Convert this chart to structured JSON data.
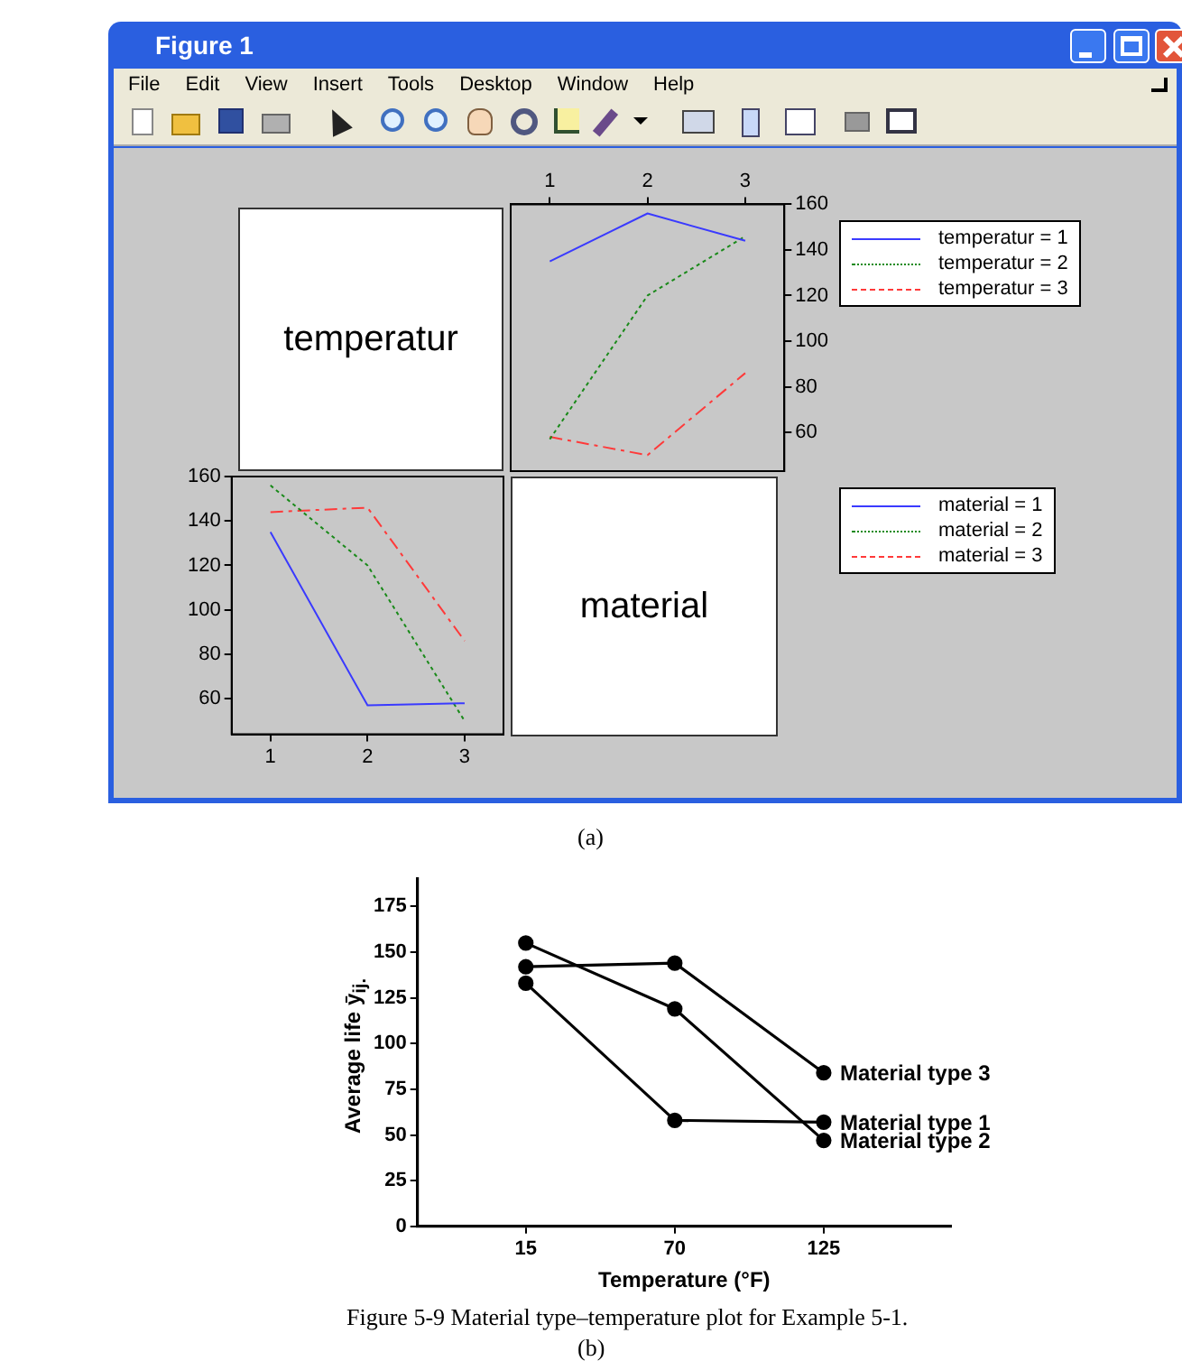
{
  "chart_data": [
    {
      "type": "other",
      "title": "Figure 1",
      "annotations": [
        "File",
        "Edit",
        "View",
        "Insert",
        "Tools",
        "Desktop",
        "Window",
        "Help"
      ]
    },
    {
      "type": "other",
      "title": "temperatur"
    },
    {
      "type": "line",
      "x": [
        1,
        2,
        3
      ],
      "xlim": [
        0.6,
        3.4
      ],
      "xticks": [
        1,
        2,
        3
      ],
      "ylim": [
        43,
        160
      ],
      "yticks": [
        60,
        80,
        100,
        120,
        140,
        160
      ],
      "grid": false,
      "legend": "right",
      "series": [
        {
          "name": "temperatur = 1",
          "color": "#3a3aff",
          "line_style": "solid",
          "values": [
            135,
            156,
            144
          ]
        },
        {
          "name": "temperatur = 2",
          "color": "#1a8a1a",
          "line_style": "dotted",
          "values": [
            57,
            120,
            146
          ]
        },
        {
          "name": "temperatur = 3",
          "color": "#ff3a3a",
          "line_style": "dashed",
          "values": [
            58,
            50,
            86
          ]
        }
      ]
    },
    {
      "type": "line",
      "x": [
        1,
        2,
        3
      ],
      "xlim": [
        0.6,
        3.4
      ],
      "xticks": [
        1,
        2,
        3
      ],
      "ylim": [
        44,
        160
      ],
      "yticks": [
        60,
        80,
        100,
        120,
        140,
        160
      ],
      "grid": false,
      "legend": "right",
      "series": [
        {
          "name": "material = 1",
          "color": "#3a3aff",
          "line_style": "solid",
          "values": [
            135,
            57,
            58
          ]
        },
        {
          "name": "material = 2",
          "color": "#1a8a1a",
          "line_style": "dotted",
          "values": [
            156,
            120,
            50
          ]
        },
        {
          "name": "material = 3",
          "color": "#ff3a3a",
          "line_style": "dashed",
          "values": [
            144,
            146,
            86
          ]
        }
      ]
    },
    {
      "type": "other",
      "title": "material",
      "annotations": [
        "(a)"
      ]
    },
    {
      "type": "line",
      "x": [
        15,
        70,
        125
      ],
      "xlim": [
        -25,
        172
      ],
      "xticks": [
        15,
        70,
        125
      ],
      "ylim": [
        0,
        190
      ],
      "yticks": [
        0,
        25,
        50,
        75,
        100,
        125,
        150,
        175
      ],
      "xlabel": "Temperature (°F)",
      "ylabel": "Average life ȳ$_{ij.}$",
      "grid": false,
      "legend": false,
      "marker": "circle",
      "line_style": "solid",
      "series": [
        {
          "name": "Material type 1",
          "color": "#000000",
          "values": [
            133,
            58,
            57
          ]
        },
        {
          "name": "Material type 2",
          "color": "#000000",
          "values": [
            155,
            119,
            47
          ]
        },
        {
          "name": "Material type 3",
          "color": "#000000",
          "values": [
            142,
            144,
            84
          ]
        }
      ],
      "annotations": [
        "Figure 5-9 Material type–temperature plot for Example 5-1.",
        "(b)"
      ]
    }
  ]
}
